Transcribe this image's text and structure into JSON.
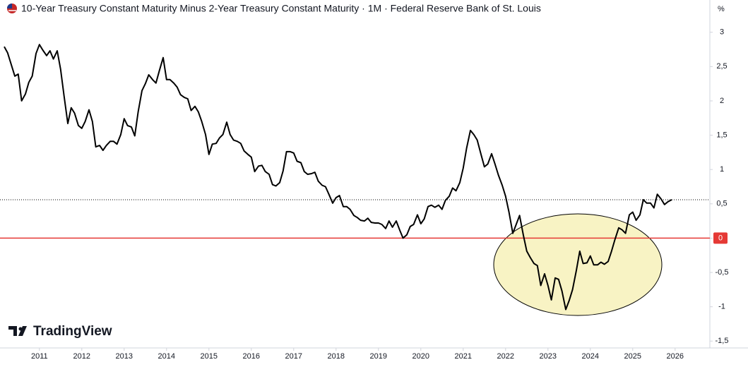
{
  "chart_data": {
    "type": "line",
    "title": "10-Year Treasury Constant Maturity Minus 2-Year Treasury Constant Maturity · 1M · Federal Reserve Bank of St. Louis",
    "unit": "%",
    "brand": "TradingView",
    "x": [
      2010.17,
      2010.25,
      2010.33,
      2010.42,
      2010.5,
      2010.58,
      2010.67,
      2010.75,
      2010.83,
      2010.92,
      2011,
      2011.08,
      2011.17,
      2011.25,
      2011.33,
      2011.42,
      2011.5,
      2011.58,
      2011.67,
      2011.75,
      2011.83,
      2011.92,
      2012,
      2012.08,
      2012.17,
      2012.25,
      2012.33,
      2012.42,
      2012.5,
      2012.58,
      2012.67,
      2012.75,
      2012.83,
      2012.92,
      2013,
      2013.08,
      2013.17,
      2013.25,
      2013.33,
      2013.42,
      2013.5,
      2013.58,
      2013.67,
      2013.75,
      2013.83,
      2013.92,
      2014,
      2014.08,
      2014.17,
      2014.25,
      2014.33,
      2014.42,
      2014.5,
      2014.58,
      2014.67,
      2014.75,
      2014.83,
      2014.92,
      2015,
      2015.08,
      2015.17,
      2015.25,
      2015.33,
      2015.42,
      2015.5,
      2015.58,
      2015.67,
      2015.75,
      2015.83,
      2015.92,
      2016,
      2016.08,
      2016.17,
      2016.25,
      2016.33,
      2016.42,
      2016.5,
      2016.58,
      2016.67,
      2016.75,
      2016.83,
      2016.92,
      2017,
      2017.08,
      2017.17,
      2017.25,
      2017.33,
      2017.42,
      2017.5,
      2017.58,
      2017.67,
      2017.75,
      2017.83,
      2017.92,
      2018,
      2018.08,
      2018.17,
      2018.25,
      2018.33,
      2018.42,
      2018.5,
      2018.58,
      2018.67,
      2018.75,
      2018.83,
      2018.92,
      2019,
      2019.08,
      2019.17,
      2019.25,
      2019.33,
      2019.42,
      2019.5,
      2019.58,
      2019.67,
      2019.75,
      2019.83,
      2019.92,
      2020,
      2020.08,
      2020.17,
      2020.25,
      2020.33,
      2020.42,
      2020.5,
      2020.58,
      2020.67,
      2020.75,
      2020.83,
      2020.92,
      2021,
      2021.08,
      2021.17,
      2021.25,
      2021.33,
      2021.42,
      2021.5,
      2021.58,
      2021.67,
      2021.75,
      2021.83,
      2021.92,
      2022,
      2022.08,
      2022.17,
      2022.25,
      2022.33,
      2022.42,
      2022.5,
      2022.58,
      2022.67,
      2022.75,
      2022.83,
      2022.92,
      2023,
      2023.08,
      2023.17,
      2023.25,
      2023.33,
      2023.42,
      2023.5,
      2023.58,
      2023.67,
      2023.75,
      2023.83,
      2023.92,
      2024,
      2024.08,
      2024.17,
      2024.25,
      2024.33,
      2024.42,
      2024.5,
      2024.58,
      2024.67,
      2024.75,
      2024.83,
      2024.92,
      2025,
      2025.08,
      2025.17,
      2025.25,
      2025.33,
      2025.42,
      2025.5,
      2025.58,
      2025.67,
      2025.75,
      2025.83,
      2025.92
    ],
    "series": [
      {
        "color": "#000000",
        "values": [
          2.79,
          2.7,
          2.54,
          2.36,
          2.39,
          2.0,
          2.1,
          2.27,
          2.36,
          2.69,
          2.82,
          2.74,
          2.66,
          2.73,
          2.61,
          2.73,
          2.46,
          2.08,
          1.67,
          1.9,
          1.82,
          1.64,
          1.6,
          1.7,
          1.87,
          1.7,
          1.33,
          1.35,
          1.28,
          1.35,
          1.41,
          1.41,
          1.37,
          1.51,
          1.74,
          1.64,
          1.62,
          1.49,
          1.84,
          2.15,
          2.25,
          2.38,
          2.31,
          2.26,
          2.44,
          2.63,
          2.31,
          2.31,
          2.26,
          2.2,
          2.09,
          2.05,
          2.03,
          1.86,
          1.92,
          1.84,
          1.7,
          1.51,
          1.22,
          1.37,
          1.38,
          1.46,
          1.51,
          1.69,
          1.51,
          1.43,
          1.41,
          1.38,
          1.27,
          1.22,
          1.18,
          0.97,
          1.05,
          1.06,
          0.97,
          0.93,
          0.78,
          0.76,
          0.81,
          0.98,
          1.26,
          1.26,
          1.24,
          1.12,
          1.1,
          0.97,
          0.93,
          0.94,
          0.96,
          0.83,
          0.77,
          0.75,
          0.64,
          0.51,
          0.59,
          0.62,
          0.46,
          0.46,
          0.42,
          0.33,
          0.3,
          0.26,
          0.25,
          0.29,
          0.23,
          0.22,
          0.22,
          0.2,
          0.14,
          0.25,
          0.16,
          0.25,
          0.12,
          0.0,
          0.05,
          0.17,
          0.2,
          0.34,
          0.21,
          0.28,
          0.46,
          0.48,
          0.45,
          0.48,
          0.42,
          0.55,
          0.61,
          0.73,
          0.69,
          0.81,
          1.02,
          1.31,
          1.57,
          1.51,
          1.43,
          1.22,
          1.04,
          1.08,
          1.23,
          1.08,
          0.92,
          0.77,
          0.61,
          0.38,
          0.07,
          0.2,
          0.33,
          0.04,
          -0.19,
          -0.28,
          -0.37,
          -0.4,
          -0.69,
          -0.52,
          -0.69,
          -0.9,
          -0.58,
          -0.6,
          -0.77,
          -1.04,
          -0.91,
          -0.75,
          -0.47,
          -0.19,
          -0.37,
          -0.36,
          -0.26,
          -0.39,
          -0.39,
          -0.35,
          -0.38,
          -0.34,
          -0.19,
          -0.02,
          0.15,
          0.12,
          0.07,
          0.34,
          0.38,
          0.26,
          0.34,
          0.56,
          0.51,
          0.51,
          0.44,
          0.64,
          0.57,
          0.49,
          0.53,
          0.56
        ]
      }
    ],
    "xlim": [
      2010.07,
      2026.82
    ],
    "xticks": [
      2011,
      2012,
      2013,
      2014,
      2015,
      2016,
      2017,
      2018,
      2019,
      2020,
      2021,
      2022,
      2023,
      2024,
      2025,
      2026
    ],
    "ylim": [
      -1.6,
      3.47
    ],
    "yticks": [
      {
        "value": -1.5,
        "label": "-1,5"
      },
      -1,
      {
        "value": -0.5,
        "label": "-0,5"
      },
      0,
      {
        "value": 0.5,
        "label": "0,5"
      },
      1,
      {
        "value": 1.5,
        "label": "1,5"
      },
      2,
      {
        "value": 2.5,
        "label": "2,5"
      },
      3
    ],
    "zero_line_color": "#e53935",
    "last_value_line": true,
    "grid": false
  }
}
